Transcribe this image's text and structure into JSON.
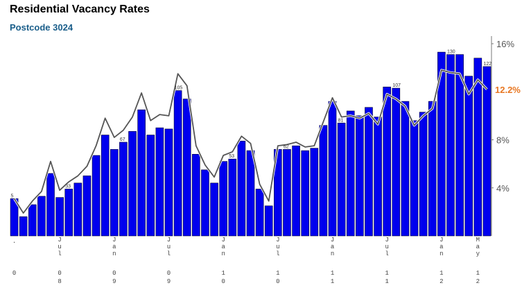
{
  "title": "Residential Vacancy Rates",
  "subtitle": "Postcode 3024",
  "current_value_label": "12.2%",
  "colors": {
    "bar": "#0000ee",
    "bar_stroke": "#000033",
    "line": "#555555",
    "current": "#e87722",
    "subtitle": "#1a5e8a"
  },
  "chart_data": {
    "type": "bar",
    "title": "Residential Vacancy Rates",
    "subtitle": "Postcode 3024",
    "xlabel": "",
    "ylabel": "",
    "ylim": [
      0,
      16
    ],
    "y_ticks": [
      "4%",
      "8%",
      "16%"
    ],
    "x_ticks": [
      {
        "index": 0,
        "label": "",
        "year_label": "0"
      },
      {
        "index": 5,
        "label": "Jul",
        "year_label": "08"
      },
      {
        "index": 11,
        "label": "Jan",
        "year_label": "09"
      },
      {
        "index": 17,
        "label": "Jul",
        "year_label": "09"
      },
      {
        "index": 23,
        "label": "Jan",
        "year_label": "10"
      },
      {
        "index": 29,
        "label": "Jul",
        "year_label": "10"
      },
      {
        "index": 35,
        "label": "Jan",
        "year_label": "11"
      },
      {
        "index": 41,
        "label": "Jul",
        "year_label": "11"
      },
      {
        "index": 47,
        "label": "Jan",
        "year_label": "12"
      },
      {
        "index": 51,
        "label": "May",
        "year_label": "12"
      }
    ],
    "series": [
      {
        "type": "bar",
        "values": [
          3.1,
          1.6,
          2.6,
          3.3,
          5.2,
          3.2,
          3.9,
          4.4,
          5.0,
          6.7,
          8.4,
          7.2,
          7.8,
          8.7,
          10.5,
          8.4,
          9.0,
          8.9,
          12.1,
          11.4,
          6.8,
          5.5,
          4.4,
          6.2,
          6.4,
          7.9,
          7.1,
          3.9,
          2.5,
          7.2,
          7.2,
          7.5,
          7.1,
          7.3,
          9.2,
          11.2,
          9.4,
          10.4,
          10.0,
          10.7,
          9.9,
          12.4,
          12.3,
          11.2,
          9.6,
          10.3,
          11.2,
          15.3,
          15.1,
          15.1,
          13.3,
          14.8,
          14.1
        ]
      },
      {
        "type": "line",
        "values": [
          3.1,
          1.9,
          2.9,
          3.7,
          6.2,
          3.8,
          4.5,
          5.0,
          5.8,
          7.5,
          9.8,
          8.2,
          8.8,
          9.9,
          11.9,
          9.6,
          10.1,
          10.0,
          13.5,
          12.5,
          7.5,
          5.9,
          4.9,
          6.7,
          7.0,
          8.3,
          7.7,
          4.3,
          2.9,
          7.5,
          7.6,
          7.8,
          7.4,
          7.5,
          9.5,
          11.5,
          9.9,
          10.0,
          9.8,
          10.2,
          9.3,
          11.8,
          11.4,
          10.8,
          9.2,
          10.0,
          10.6,
          13.8,
          13.6,
          13.5,
          11.8,
          13.0,
          12.2
        ]
      }
    ],
    "data_labels": [
      {
        "index": 0,
        "text": "5"
      },
      {
        "index": 6,
        "text": "33"
      },
      {
        "index": 12,
        "text": "67"
      },
      {
        "index": 18,
        "text": "105"
      },
      {
        "index": 24,
        "text": "53"
      },
      {
        "index": 30,
        "text": "62"
      },
      {
        "index": 36,
        "text": "81"
      },
      {
        "index": 42,
        "text": "107"
      },
      {
        "index": 48,
        "text": "130"
      },
      {
        "index": 52,
        "text": "122"
      }
    ],
    "grid": false,
    "legend": "none"
  }
}
